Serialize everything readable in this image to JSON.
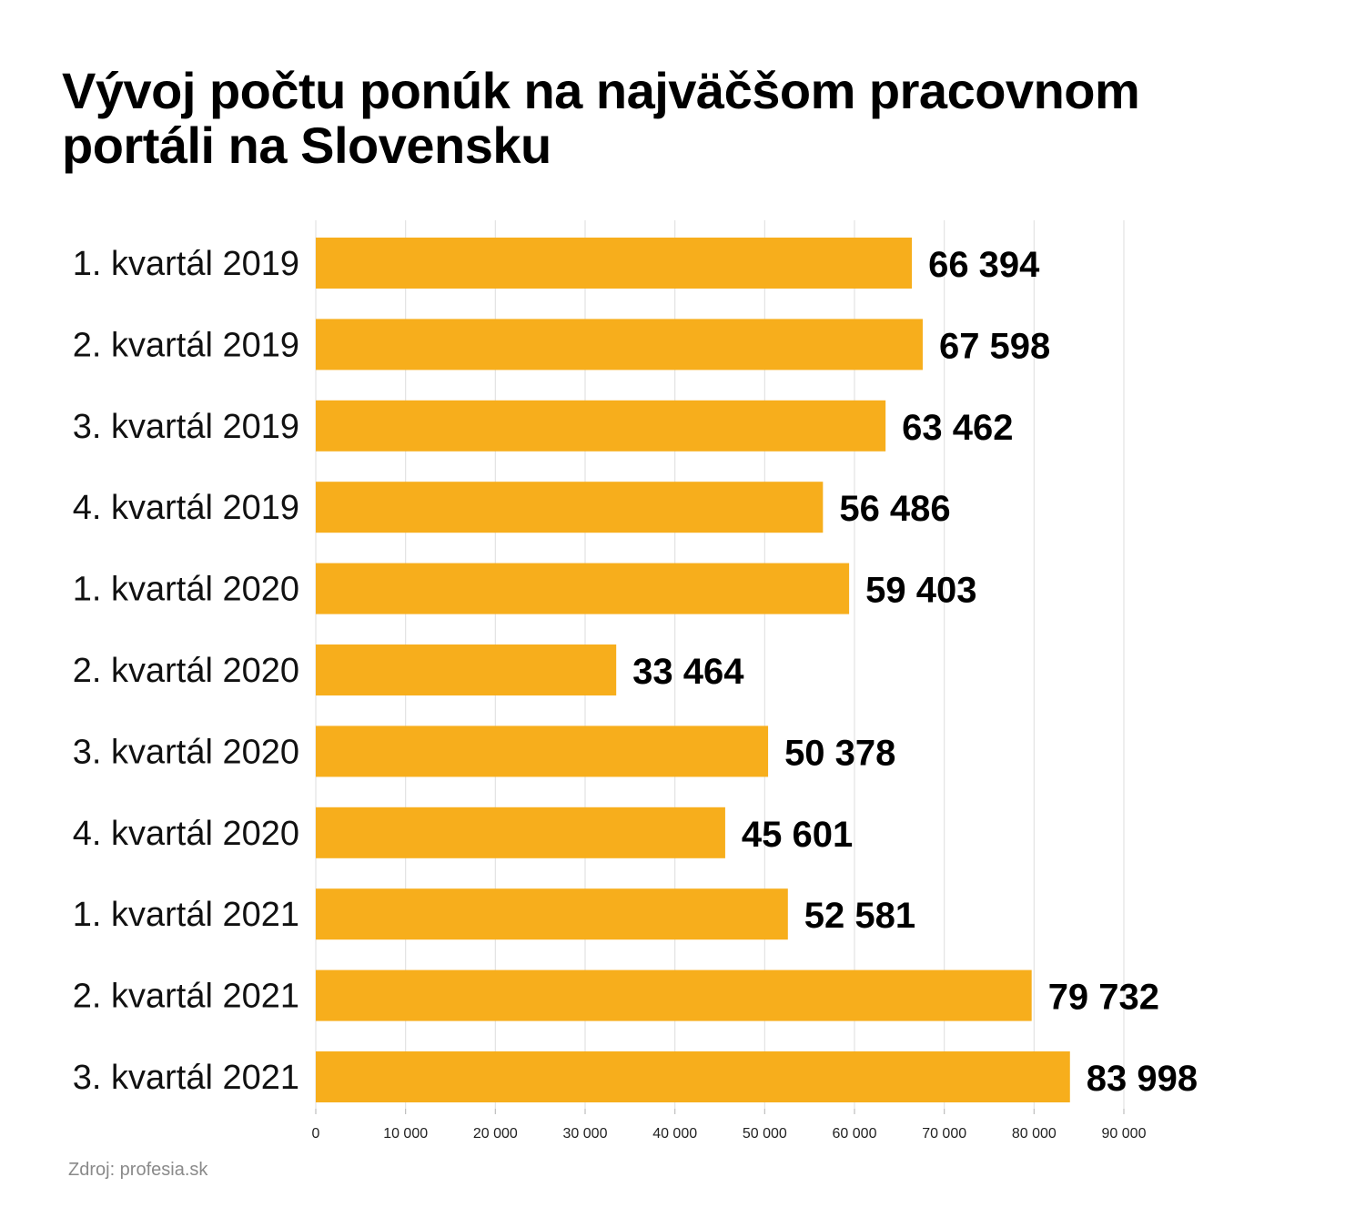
{
  "chart_data": {
    "type": "bar",
    "orientation": "horizontal",
    "title": "Vývoj počtu ponúk na najväčšom pracovnom portáli na Slovensku",
    "categories": [
      "1. kvartál 2019",
      "2. kvartál 2019",
      "3. kvartál 2019",
      "4. kvartál 2019",
      "1. kvartál 2020",
      "2. kvartál 2020",
      "3. kvartál 2020",
      "4. kvartál 2020",
      "1. kvartál 2021",
      "2. kvartál 2021",
      "3. kvartál 2021"
    ],
    "values": [
      66394,
      67598,
      63462,
      56486,
      59403,
      33464,
      50378,
      45601,
      52581,
      79732,
      83998
    ],
    "value_labels": [
      "66 394",
      "67 598",
      "63 462",
      "56 486",
      "59 403",
      "33 464",
      "50 378",
      "45 601",
      "52 581",
      "79 732",
      "83 998"
    ],
    "xlim": [
      0,
      90000
    ],
    "ticks": [
      0,
      10000,
      20000,
      30000,
      40000,
      50000,
      60000,
      70000,
      80000,
      90000
    ],
    "tick_labels": [
      "0",
      "10 000",
      "20 000",
      "30 000",
      "40 000",
      "50 000",
      "60 000",
      "70 000",
      "80 000",
      "90 000"
    ],
    "xlabel": "",
    "ylabel": "",
    "grid": true,
    "legend": "none",
    "bar_color": "#F7AE1C",
    "grid_color": "#e3e3e3"
  },
  "source": "Zdroj: profesia.sk"
}
